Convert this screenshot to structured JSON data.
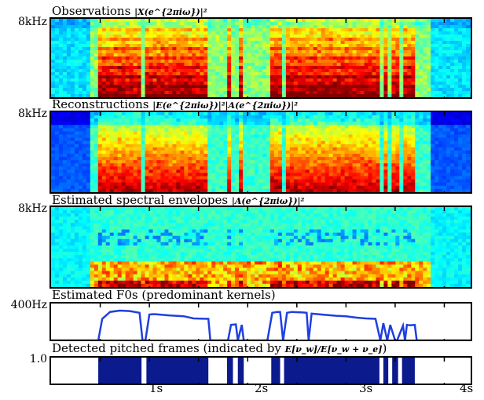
{
  "panels": [
    {
      "title": "Observations",
      "formula": "|X(e^{2πiω})|²",
      "ylabel": "8kHz"
    },
    {
      "title": "Reconstructions",
      "formula": "|E(e^{2πiω})|²|A(e^{2πiω})|²",
      "ylabel": "8kHz"
    },
    {
      "title": "Estimated spectral envelopes",
      "formula": "|A(e^{2πiω})|²",
      "ylabel": "8kHz"
    },
    {
      "title": "Estimated F0s (predominant kernels)",
      "ylabel": "400Hz"
    },
    {
      "title": "Detected pitched frames (indicated by",
      "formula": "E[ν_w]/E[ν_w + ν_e]",
      "suffix": ")",
      "ylabel": "1.0"
    }
  ],
  "chart_data": [
    {
      "type": "heatmap",
      "title": "Observations",
      "xlim": [
        0,
        4.3
      ],
      "ylabel": "8kHz",
      "colormap": "jet"
    },
    {
      "type": "heatmap",
      "title": "Reconstructions",
      "xlim": [
        0,
        4.3
      ],
      "ylabel": "8kHz",
      "colormap": "jet"
    },
    {
      "type": "heatmap",
      "title": "Estimated spectral envelopes",
      "xlim": [
        0,
        4.3
      ],
      "ylabel": "8kHz",
      "colormap": "jet"
    },
    {
      "type": "line",
      "title": "Estimated F0s (predominant kernels)",
      "ylim": [
        0,
        400
      ],
      "ytick": "400Hz",
      "x": [
        0,
        0.48,
        0.52,
        0.6,
        0.7,
        0.8,
        0.9,
        0.93,
        0.96,
        1.0,
        1.05,
        1.2,
        1.35,
        1.45,
        1.6,
        1.62,
        1.64,
        1.8,
        1.83,
        1.88,
        1.9,
        1.94,
        1.96,
        2.05,
        2.1,
        2.15,
        2.2,
        2.25,
        2.3,
        2.33,
        2.36,
        2.4,
        2.45,
        2.55,
        2.6,
        2.62,
        2.65,
        2.75,
        2.9,
        3.0,
        3.1,
        3.2,
        3.3,
        3.35,
        3.38,
        3.42,
        3.45,
        3.5,
        3.52,
        3.58,
        3.6,
        3.62,
        3.65,
        3.7,
        3.72,
        4.3
      ],
      "y": [
        0,
        0,
        250,
        330,
        345,
        340,
        320,
        0,
        0,
        300,
        305,
        290,
        280,
        255,
        250,
        0,
        0,
        0,
        180,
        185,
        0,
        180,
        0,
        0,
        0,
        0,
        0,
        320,
        330,
        330,
        0,
        320,
        330,
        325,
        320,
        0,
        310,
        300,
        285,
        280,
        265,
        255,
        250,
        0,
        200,
        0,
        180,
        0,
        0,
        170,
        0,
        180,
        175,
        180,
        0,
        0
      ],
      "series_color": "#1f3fe0"
    },
    {
      "type": "bar",
      "title": "Detected pitched frames",
      "ytick": "1.0",
      "pitched_intervals": [
        [
          0.48,
          0.92
        ],
        [
          0.97,
          1.6
        ],
        [
          1.79,
          1.85
        ],
        [
          1.9,
          1.96
        ],
        [
          2.24,
          2.33
        ],
        [
          2.37,
          3.34
        ],
        [
          3.38,
          3.43
        ],
        [
          3.47,
          3.53
        ],
        [
          3.57,
          3.7
        ]
      ],
      "series_color": "#0b1a8c"
    }
  ],
  "xaxis": {
    "ticks": [
      "1s",
      "2s",
      "3s",
      "4s"
    ],
    "values": [
      1,
      2,
      3,
      4
    ],
    "xlim": [
      0,
      4.3
    ]
  }
}
